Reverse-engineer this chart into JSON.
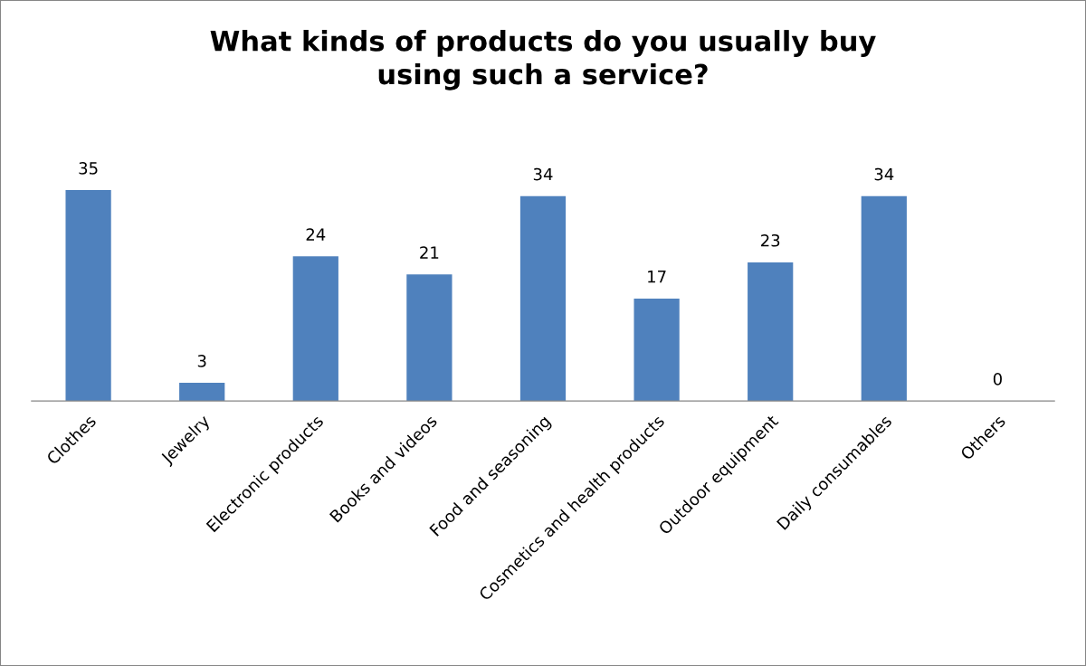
{
  "chart_data": {
    "type": "bar",
    "title": "What kinds of products do you usually buy\nusing such a service?",
    "categories": [
      "Clothes",
      "Jewelry",
      "Electronic products",
      "Books and videos",
      "Food and seasoning",
      "Cosmetics and health products",
      "Outdoor equipment",
      "Daily consumables",
      "Others"
    ],
    "values": [
      35,
      3,
      24,
      21,
      34,
      17,
      23,
      34,
      0
    ],
    "color": "#4f81bd",
    "data_labels": true,
    "grid": false,
    "legend": false
  }
}
